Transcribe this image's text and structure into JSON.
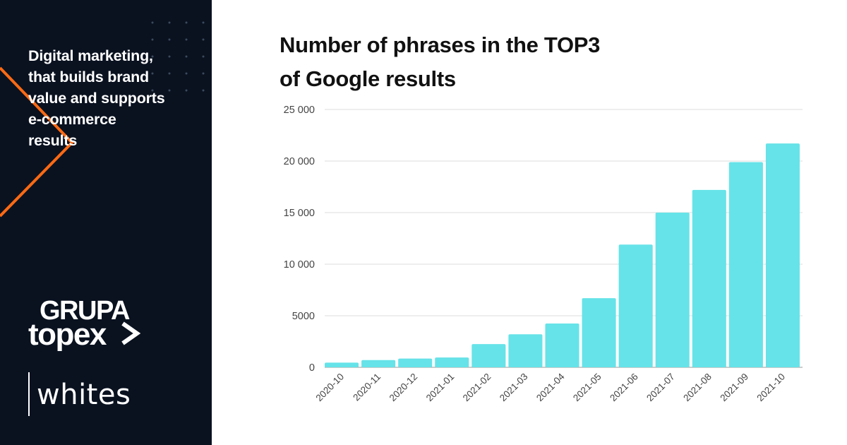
{
  "brand": {
    "tagline_lines": [
      "Digital marketing,",
      "that builds brand",
      "value and supports",
      "e-commerce",
      "results"
    ],
    "logo_top": "GRUPA",
    "logo_mid": "topex",
    "logo_bottom": "whites",
    "accent_color": "#ff6a13",
    "panel_color": "#0a1220"
  },
  "chart_data": {
    "type": "bar",
    "title_lines": [
      "Number of phrases in the TOP3",
      "of Google results"
    ],
    "categories": [
      "2020-10",
      "2020-11",
      "2020-12",
      "2021-01",
      "2021-02",
      "2021-03",
      "2021-04",
      "2021-05",
      "2021-06",
      "2021-07",
      "2021-08",
      "2021-09",
      "2021-10"
    ],
    "values": [
      450,
      700,
      850,
      950,
      2250,
      3200,
      4250,
      6700,
      11900,
      15000,
      17200,
      19900,
      21700
    ],
    "ylim": [
      0,
      25000
    ],
    "yticks": [
      0,
      5000,
      10000,
      15000,
      20000,
      25000
    ],
    "ytick_labels": [
      "0",
      "5000",
      "10 000",
      "15 000",
      "20 000",
      "25 000"
    ],
    "grid": true,
    "bar_color": "#66e3e8"
  }
}
